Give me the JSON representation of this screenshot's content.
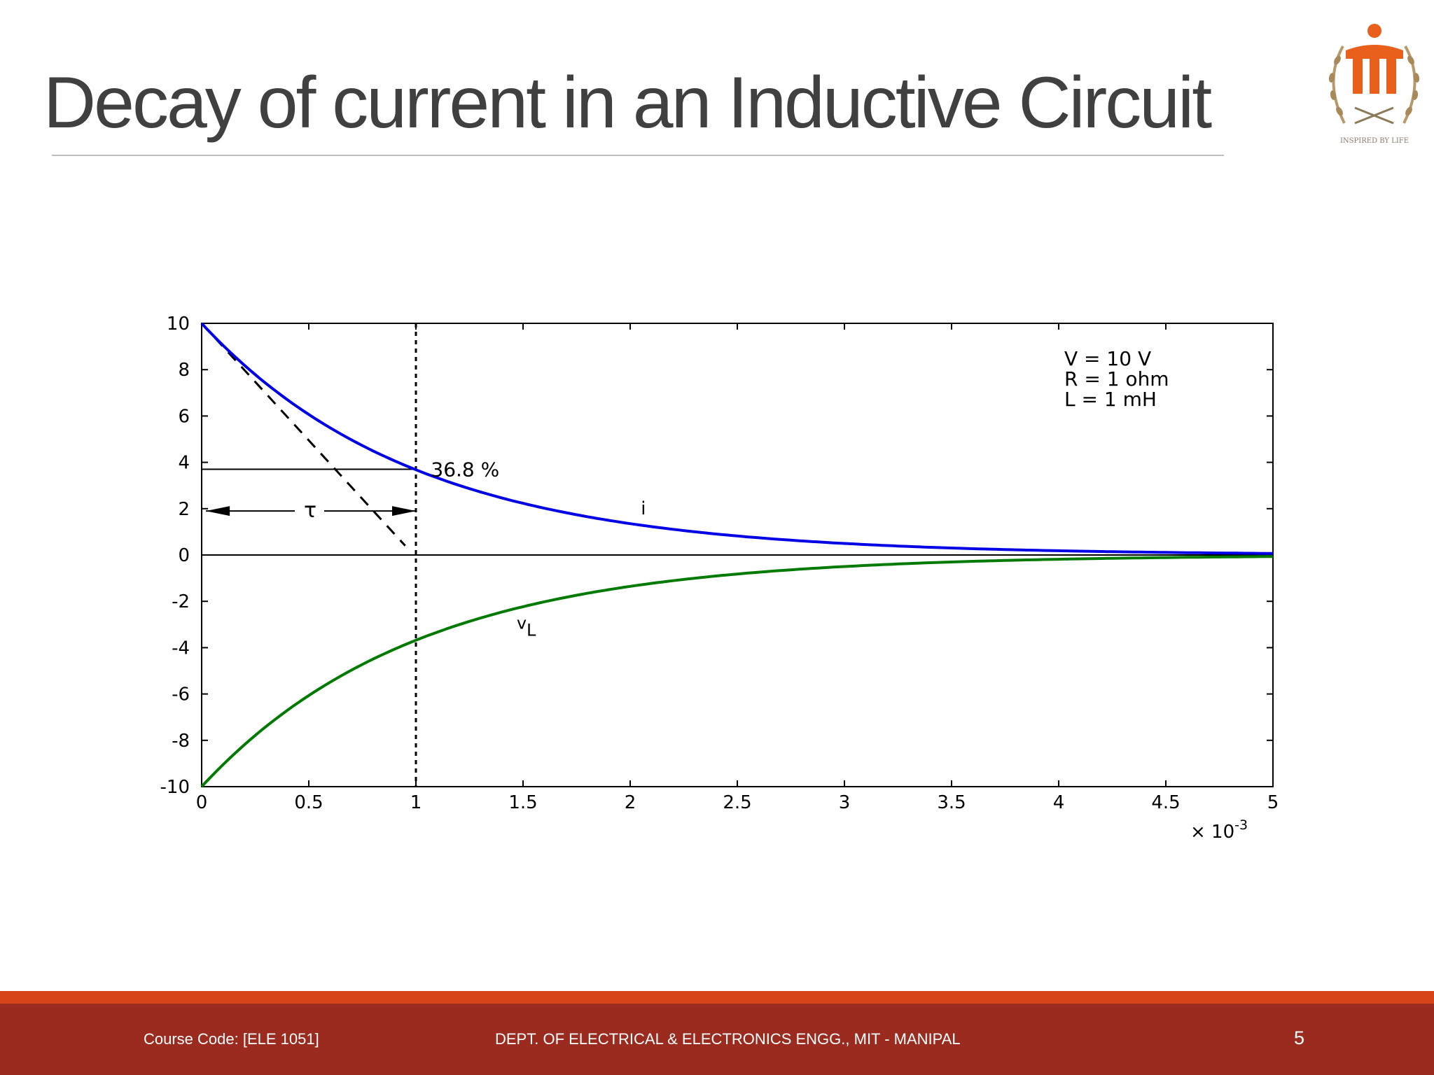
{
  "slide": {
    "title": "Decay of current in an Inductive Circuit",
    "page_number": "5"
  },
  "footer": {
    "course_code": "Course Code: [ELE 1051]",
    "department": "DEPT. OF ELECTRICAL & ELECTRONICS ENGG., MIT - MANIPAL"
  },
  "logo": {
    "motto": "INSPIRED BY LIFE",
    "icon": "university-seal-logo"
  },
  "colors": {
    "title": "#404040",
    "footer_bg": "#9b2a1f",
    "footer_stripe": "#d9451b",
    "current_curve": "#0000e6",
    "voltage_curve": "#007a00",
    "logo_orange": "#e8601c"
  },
  "chart_data": {
    "type": "line",
    "title": "",
    "xlabel": "",
    "ylabel": "",
    "x_multiplier": "× 10^-3",
    "xlim": [
      0,
      5
    ],
    "ylim": [
      -10,
      10
    ],
    "x_ticks": [
      0,
      0.5,
      1,
      1.5,
      2,
      2.5,
      3,
      3.5,
      4,
      4.5,
      5
    ],
    "x_tick_labels": [
      "0",
      "0.5",
      "1",
      "1.5",
      "2",
      "2.5",
      "3",
      "3.5",
      "4",
      "4.5",
      "5"
    ],
    "y_ticks": [
      -10,
      -8,
      -6,
      -4,
      -2,
      0,
      2,
      4,
      6,
      8,
      10
    ],
    "y_tick_labels": [
      "-10",
      "-8",
      "-6",
      "-4",
      "-2",
      "0",
      "2",
      "4",
      "6",
      "8",
      "10"
    ],
    "grid": false,
    "series": [
      {
        "name": "i",
        "color": "#0000e6",
        "x": [
          0,
          0.25,
          0.5,
          0.75,
          1,
          1.25,
          1.5,
          1.75,
          2,
          2.25,
          2.5,
          2.75,
          3,
          3.25,
          3.5,
          3.75,
          4,
          4.25,
          4.5,
          4.75,
          5
        ],
        "y": [
          10,
          7.79,
          6.07,
          4.72,
          3.68,
          2.87,
          2.23,
          1.74,
          1.35,
          1.05,
          0.82,
          0.64,
          0.5,
          0.39,
          0.3,
          0.24,
          0.18,
          0.14,
          0.11,
          0.09,
          0.07
        ]
      },
      {
        "name": "v",
        "subscript": "L",
        "color": "#007a00",
        "x": [
          0,
          0.25,
          0.5,
          0.75,
          1,
          1.25,
          1.5,
          1.75,
          2,
          2.25,
          2.5,
          2.75,
          3,
          3.25,
          3.5,
          3.75,
          4,
          4.25,
          4.5,
          4.75,
          5
        ],
        "y": [
          -10,
          -7.79,
          -6.07,
          -4.72,
          -3.68,
          -2.87,
          -2.23,
          -1.74,
          -1.35,
          -1.05,
          -0.82,
          -0.64,
          -0.5,
          -0.39,
          -0.3,
          -0.24,
          -0.18,
          -0.14,
          -0.11,
          -0.09,
          -0.07
        ]
      }
    ],
    "reference_lines": {
      "tangent": {
        "x": [
          0,
          0.95
        ],
        "y": [
          10,
          0.4
        ]
      },
      "time_constant_x": 1,
      "level_y": 3.7
    },
    "annotations": {
      "percent": "36.8 %",
      "tau": "τ",
      "tau_arrow_y": 1.9,
      "params": [
        "V = 10 V",
        "R = 1 ohm",
        "L = 1 mH"
      ]
    }
  }
}
